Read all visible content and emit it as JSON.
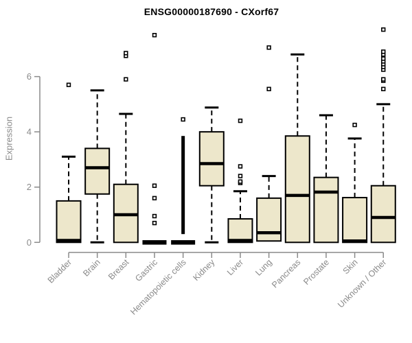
{
  "chart_data": {
    "type": "boxplot",
    "title": "ENSG00000187690 - CXorf67",
    "ylabel": "Expression",
    "xlabel": "",
    "yticks": [
      0,
      2,
      4,
      6
    ],
    "ylim": [
      0,
      7.8
    ],
    "grid": false,
    "legend": "none",
    "outlier_marker": "open-square",
    "colors": {
      "box_fill": "#EDE7CB",
      "box_border": "#000000",
      "median": "#000000",
      "axis": "#8A8A8A",
      "background": "#FFFFFF"
    },
    "categories": [
      "Bladder",
      "Brain",
      "Breast",
      "Gastric",
      "Hematopoietic cells",
      "Kidney",
      "Liver",
      "Lung",
      "Pancreas",
      "Prostate",
      "Skin",
      "Unknown / Other"
    ],
    "boxes": [
      {
        "label": "Bladder",
        "whisker_low": 0,
        "q1": 0,
        "median": 0.07,
        "q3": 1.5,
        "whisker_high": 3.1,
        "outliers": [
          5.7
        ]
      },
      {
        "label": "Brain",
        "whisker_low": 0,
        "q1": 1.75,
        "median": 2.7,
        "q3": 3.4,
        "whisker_high": 5.5,
        "outliers": []
      },
      {
        "label": "Breast",
        "whisker_low": 0,
        "q1": 0,
        "median": 1.0,
        "q3": 2.1,
        "whisker_high": 4.65,
        "outliers": [
          5.9,
          6.75,
          6.85
        ]
      },
      {
        "label": "Gastric",
        "whisker_low": 0,
        "q1": 0,
        "median": 0,
        "q3": 0,
        "whisker_high": 0,
        "outliers": [
          0.7,
          0.95,
          1.6,
          2.05,
          7.5
        ]
      },
      {
        "label": "Hematopoietic cells",
        "whisker_low": 0,
        "q1": 0,
        "median": 0,
        "q3": 0,
        "whisker_high": 0,
        "outliers": [
          4.45
        ],
        "dense_outliers": {
          "min": 0.3,
          "max": 3.85
        }
      },
      {
        "label": "Kidney",
        "whisker_low": 0,
        "q1": 2.05,
        "median": 2.85,
        "q3": 4.0,
        "whisker_high": 4.88,
        "outliers": []
      },
      {
        "label": "Liver",
        "whisker_low": 0,
        "q1": 0,
        "median": 0.07,
        "q3": 0.85,
        "whisker_high": 1.85,
        "outliers": [
          2.15,
          2.2,
          2.4,
          2.75,
          4.4
        ]
      },
      {
        "label": "Lung",
        "whisker_low": 0.05,
        "q1": 0.05,
        "median": 0.35,
        "q3": 1.6,
        "whisker_high": 2.4,
        "outliers": [
          5.55,
          7.05
        ]
      },
      {
        "label": "Pancreas",
        "whisker_low": 0,
        "q1": 0,
        "median": 1.7,
        "q3": 3.85,
        "whisker_high": 6.8,
        "outliers": []
      },
      {
        "label": "Prostate",
        "whisker_low": 0,
        "q1": 0,
        "median": 1.82,
        "q3": 2.35,
        "whisker_high": 4.6,
        "outliers": []
      },
      {
        "label": "Skin",
        "whisker_low": 0,
        "q1": 0,
        "median": 0.05,
        "q3": 1.62,
        "whisker_high": 3.76,
        "outliers": [
          4.25
        ]
      },
      {
        "label": "Unknown / Other",
        "whisker_low": 0,
        "q1": 0,
        "median": 0.9,
        "q3": 2.05,
        "whisker_high": 5.0,
        "outliers": [
          5.55,
          5.85,
          5.9,
          6.25,
          6.35,
          6.45,
          6.55,
          6.65,
          6.8,
          6.9,
          7.7
        ]
      }
    ]
  }
}
